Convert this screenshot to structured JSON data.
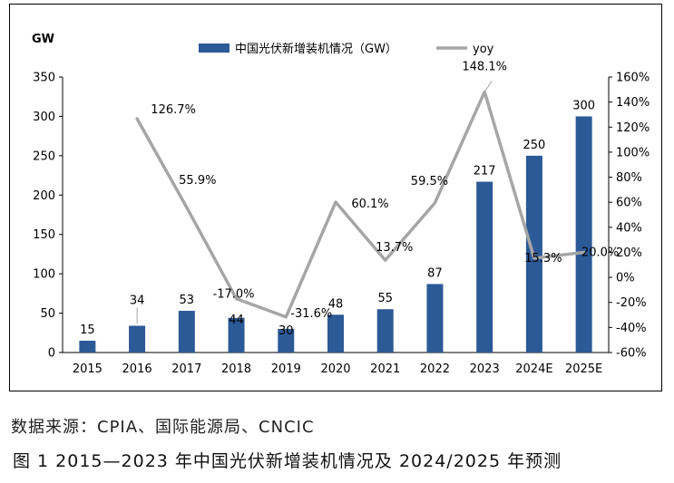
{
  "chart_data": {
    "type": "bar",
    "categories": [
      "2015",
      "2016",
      "2017",
      "2018",
      "2019",
      "2020",
      "2021",
      "2022",
      "2023",
      "2024E",
      "2025E"
    ],
    "series": [
      {
        "name": "中国光伏新增装机情况（GW）",
        "type": "bar",
        "axis": "left",
        "color": "#2c5a97",
        "values": [
          15,
          34,
          53,
          44,
          30,
          48,
          55,
          87,
          217,
          250,
          300
        ],
        "labels": [
          "15",
          "34",
          "53",
          "44",
          "30",
          "48",
          "55",
          "87",
          "217",
          "250",
          "300"
        ]
      },
      {
        "name": "yoy",
        "type": "line",
        "axis": "right",
        "color": "#a6a6a6",
        "values": [
          null,
          126.7,
          55.9,
          -17.0,
          -31.6,
          60.1,
          13.7,
          59.5,
          148.1,
          15.3,
          20.0
        ],
        "labels": [
          "",
          "126.7%",
          "55.9%",
          "-17.0%",
          "-31.6%",
          "60.1%",
          "13.7%",
          "59.5%",
          "148.1%",
          "15.3%",
          "20.0%"
        ]
      }
    ],
    "left_axis": {
      "unit": "GW",
      "ylim": [
        0,
        350
      ],
      "ticks": [
        "0",
        "50",
        "100",
        "150",
        "200",
        "250",
        "300",
        "350"
      ]
    },
    "right_axis": {
      "ylim": [
        -60,
        160
      ],
      "ticks": [
        "-60%",
        "-40%",
        "-20%",
        "0%",
        "20%",
        "40%",
        "60%",
        "80%",
        "100%",
        "120%",
        "140%",
        "160%"
      ]
    },
    "grid": false,
    "legend": "top-center"
  },
  "source_note": "数据来源：CPIA、国际能源局、CNCIC",
  "figure_caption": "图 1  2015—2023 年中国光伏新增装机情况及 2024/2025 年预测"
}
